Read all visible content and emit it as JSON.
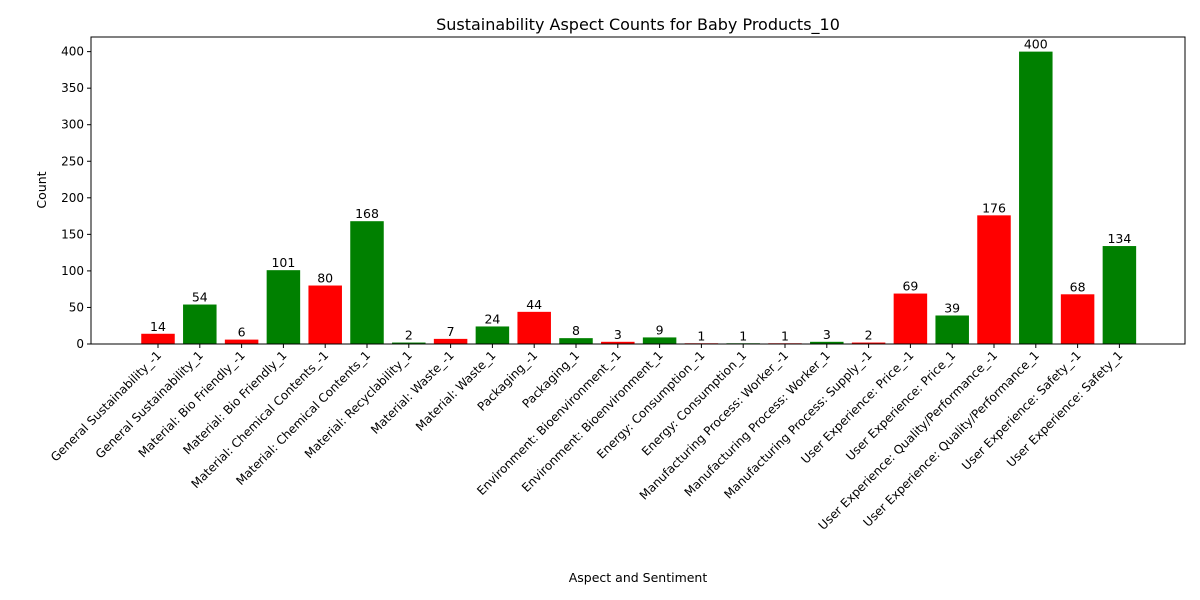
{
  "chart_data": {
    "type": "bar",
    "title": "Sustainability Aspect Counts for Baby Products_10",
    "xlabel": "Aspect and Sentiment",
    "ylabel": "Count",
    "ylim": [
      0,
      420
    ],
    "yticks": [
      0,
      50,
      100,
      150,
      200,
      250,
      300,
      350,
      400
    ],
    "grid": false,
    "colors": {
      "negative": "#ff0000",
      "positive": "#008000"
    },
    "categories": [
      "General Sustainability_-1",
      "General Sustainability_1",
      "Material: Bio Friendly_-1",
      "Material: Bio Friendly_1",
      "Material: Chemical Contents_-1",
      "Material: Chemical Contents_1",
      "Material: Recyclability_1",
      "Material: Waste_-1",
      "Material: Waste_1",
      "Packaging_-1",
      "Packaging_1",
      "Environment: Bioenvironment_-1",
      "Environment: Bioenvironment_1",
      "Energy: Consumption_-1",
      "Energy: Consumption_1",
      "Manufacturing Process: Worker_-1",
      "Manufacturing Process: Worker_1",
      "Manufacturing Process: Supply_-1",
      "User Experience: Price_-1",
      "User Experience: Price_1",
      "User Experience: Quality/Performance_-1",
      "User Experience: Quality/Performance_1",
      "User Experience: Safety_-1",
      "User Experience: Safety_1"
    ],
    "values": [
      14,
      54,
      6,
      101,
      80,
      168,
      2,
      7,
      24,
      44,
      8,
      3,
      9,
      1,
      1,
      1,
      3,
      2,
      69,
      39,
      176,
      400,
      68,
      134
    ],
    "sentiment": [
      "negative",
      "positive",
      "negative",
      "positive",
      "negative",
      "positive",
      "positive",
      "negative",
      "positive",
      "negative",
      "positive",
      "negative",
      "positive",
      "negative",
      "positive",
      "negative",
      "positive",
      "negative",
      "negative",
      "positive",
      "negative",
      "positive",
      "negative",
      "positive"
    ]
  }
}
